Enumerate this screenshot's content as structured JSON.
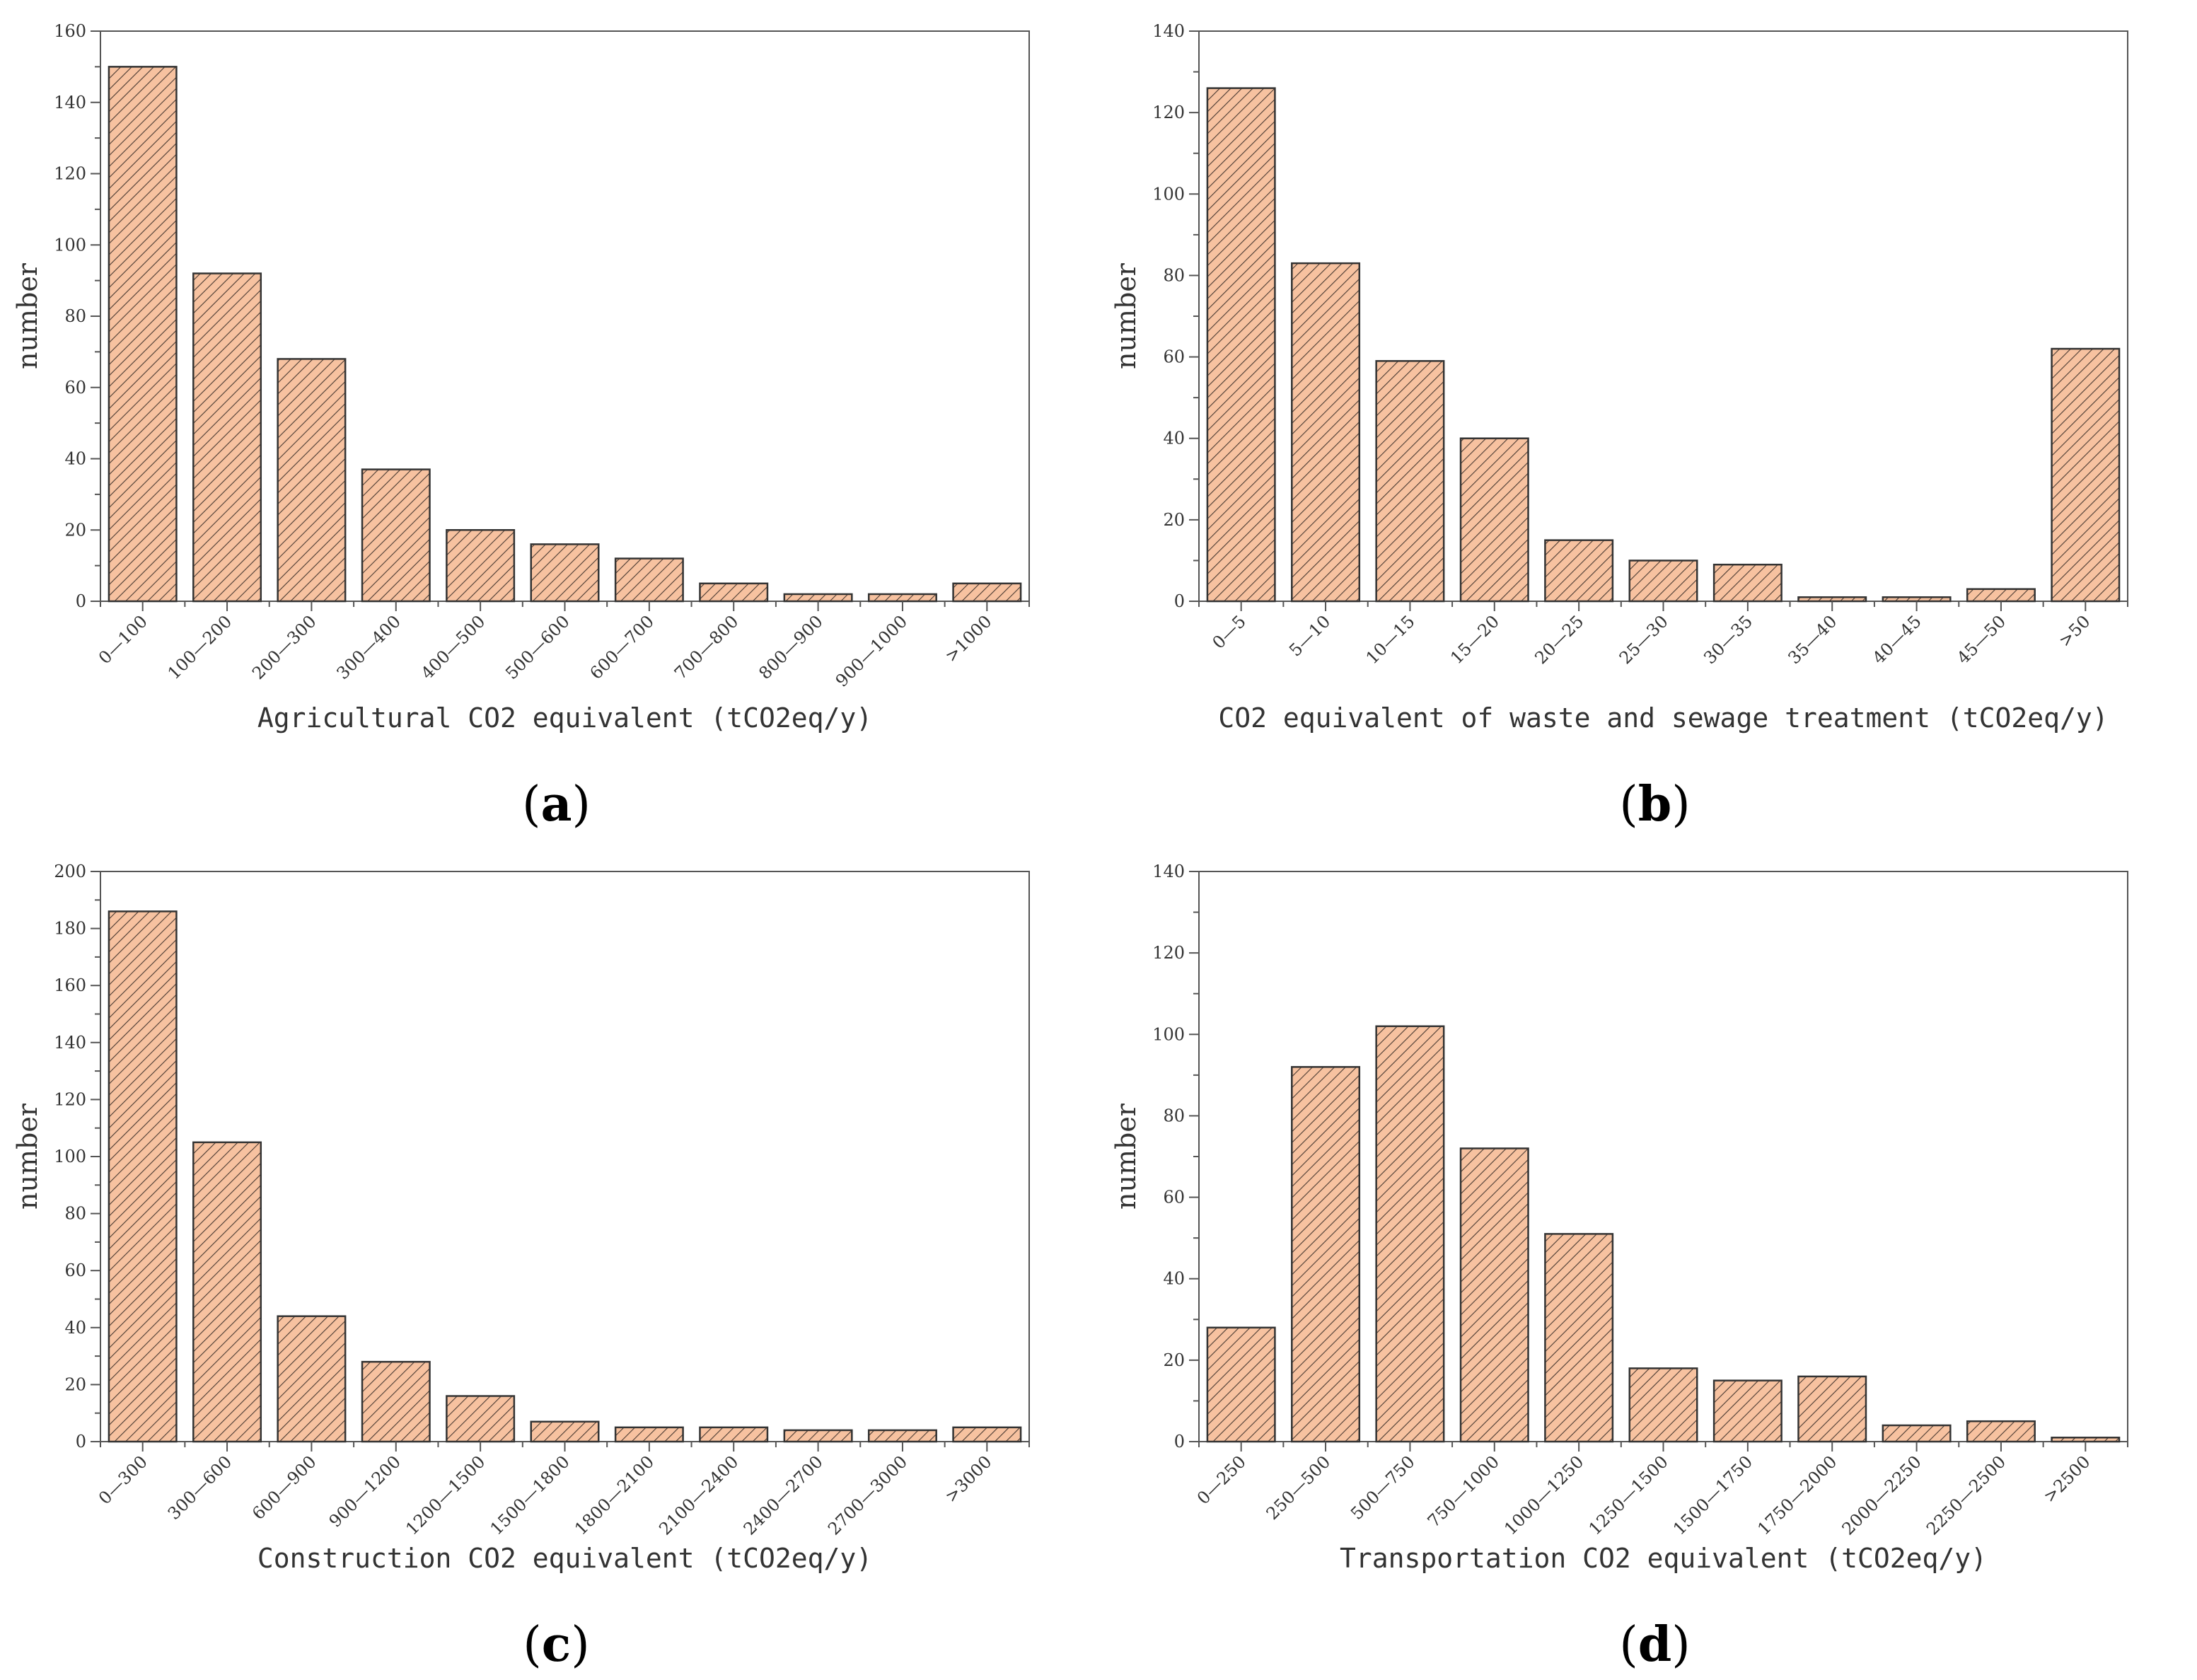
{
  "colors": {
    "bar_fill": "#f7c2a0",
    "hatch": "#4a3a32",
    "bar_stroke": "#333333",
    "axis": "#555555"
  },
  "chart_data": [
    {
      "type": "bar",
      "panel_label": "a",
      "categories": [
        "0—100",
        "100—200",
        "200—300",
        "300—400",
        "400—500",
        "500—600",
        "600—700",
        "700—800",
        "800—900",
        "900—1000",
        ">1000"
      ],
      "values": [
        150,
        92,
        68,
        37,
        20,
        16,
        12,
        5,
        2,
        2,
        5
      ],
      "xlabel": "Agricultural CO2 equivalent (tCO2eq/y)",
      "ylabel": "number",
      "ylim": [
        0,
        160
      ],
      "yticks": [
        0,
        20,
        40,
        60,
        80,
        100,
        120,
        140,
        160
      ],
      "legend": "none",
      "grid": false
    },
    {
      "type": "bar",
      "panel_label": "b",
      "categories": [
        "0—5",
        "5—10",
        "10—15",
        "15—20",
        "20—25",
        "25—30",
        "30—35",
        "35—40",
        "40—45",
        "45—50",
        ">50"
      ],
      "values": [
        126,
        83,
        59,
        40,
        15,
        10,
        9,
        1,
        1,
        3,
        62
      ],
      "xlabel": "CO2 equivalent of waste and sewage treatment (tCO2eq/y)",
      "ylabel": "number",
      "ylim": [
        0,
        140
      ],
      "yticks": [
        0,
        20,
        40,
        60,
        80,
        100,
        120,
        140
      ],
      "legend": "none",
      "grid": false
    },
    {
      "type": "bar",
      "panel_label": "c",
      "categories": [
        "0—300",
        "300—600",
        "600—900",
        "900—1200",
        "1200—1500",
        "1500—1800",
        "1800—2100",
        "2100—2400",
        "2400—2700",
        "2700—3000",
        ">3000"
      ],
      "values": [
        186,
        105,
        44,
        28,
        16,
        7,
        5,
        5,
        4,
        4,
        5
      ],
      "xlabel": "Construction CO2 equivalent (tCO2eq/y)",
      "ylabel": "number",
      "ylim": [
        0,
        200
      ],
      "yticks": [
        0,
        20,
        40,
        60,
        80,
        100,
        120,
        140,
        160,
        180,
        200
      ],
      "legend": "none",
      "grid": false
    },
    {
      "type": "bar",
      "panel_label": "d",
      "categories": [
        "0—250",
        "250—500",
        "500—750",
        "750—1000",
        "1000—1250",
        "1250—1500",
        "1500—1750",
        "1750—2000",
        "2000—2250",
        "2250—2500",
        ">2500"
      ],
      "values": [
        28,
        92,
        102,
        72,
        51,
        18,
        15,
        16,
        4,
        5,
        1
      ],
      "xlabel": "Transportation CO2 equivalent (tCO2eq/y)",
      "ylabel": "number",
      "ylim": [
        0,
        140
      ],
      "yticks": [
        0,
        20,
        40,
        60,
        80,
        100,
        120,
        140
      ],
      "legend": "none",
      "grid": false
    }
  ]
}
